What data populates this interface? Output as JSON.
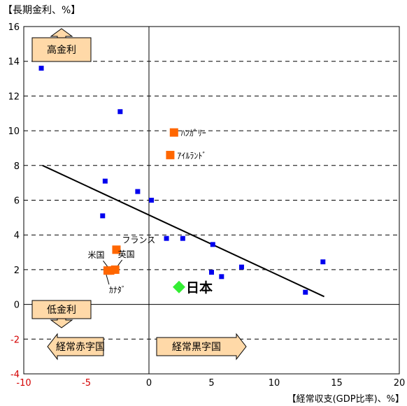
{
  "chart_data": {
    "type": "scatter",
    "ylabel": "【長期金利、%】",
    "xlabel": "【経常収支(GDP比率)、%】",
    "xlim": [
      -10,
      20
    ],
    "ylim": [
      -4,
      16
    ],
    "x_ticks": [
      "-10",
      "-5",
      "0",
      "5",
      "10",
      "15",
      "20"
    ],
    "y_ticks": [
      "-4",
      "-2",
      "0",
      "2",
      "4",
      "6",
      "8",
      "10",
      "12",
      "14",
      "16"
    ],
    "grid": "horizontal dashed",
    "series": [
      {
        "marker": "blue-square",
        "color": "#0000ee",
        "points": [
          {
            "x": -8.6,
            "y": 13.6
          },
          {
            "x": -2.3,
            "y": 11.1
          },
          {
            "x": -3.5,
            "y": 7.1
          },
          {
            "x": -0.9,
            "y": 6.5
          },
          {
            "x": 0.2,
            "y": 6.0
          },
          {
            "x": -3.7,
            "y": 5.1
          },
          {
            "x": 1.4,
            "y": 3.8
          },
          {
            "x": 2.7,
            "y": 3.8
          },
          {
            "x": 5.1,
            "y": 3.45
          },
          {
            "x": 5.0,
            "y": 1.85
          },
          {
            "x": 5.8,
            "y": 1.6
          },
          {
            "x": 7.4,
            "y": 2.15
          },
          {
            "x": 12.5,
            "y": 0.7
          },
          {
            "x": 13.9,
            "y": 2.45
          }
        ]
      },
      {
        "marker": "orange-square",
        "color": "#ff6600",
        "points": [
          {
            "x": 2.0,
            "y": 9.9,
            "label": "ﾊﾝｶﾞﾘｰ"
          },
          {
            "x": 1.7,
            "y": 8.6,
            "label": "ｱｲﾙﾗﾝﾄﾞ"
          },
          {
            "x": -2.6,
            "y": 3.15,
            "label": "フランス"
          },
          {
            "x": -3.1,
            "y": 1.95,
            "label": "米国"
          },
          {
            "x": -2.7,
            "y": 2.0,
            "label": "英国"
          },
          {
            "x": -3.3,
            "y": 1.95,
            "label": "ｶﾅﾀﾞ"
          }
        ]
      },
      {
        "marker": "green-diamond",
        "color": "#33ee33",
        "points": [
          {
            "x": 2.4,
            "y": 1.0,
            "label": "日本"
          }
        ]
      }
    ],
    "trendline": {
      "x": [
        -8.5,
        14.0
      ],
      "y": [
        8.0,
        0.45
      ]
    },
    "annotations": {
      "high_rate": "高金利",
      "low_rate": "低金利",
      "deficit": "経常赤字国",
      "surplus": "経常黒字国"
    }
  }
}
